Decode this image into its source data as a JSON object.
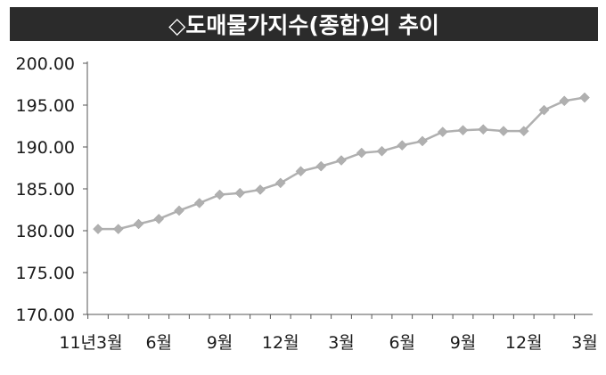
{
  "chart_data": {
    "type": "line",
    "title": "◇도매물가지수(종합)의 추이",
    "xlabel": "",
    "ylabel": "",
    "ylim": [
      170,
      200
    ],
    "y_ticks": [
      "200.00",
      "195.00",
      "190.00",
      "185.00",
      "180.00",
      "175.00",
      "170.00"
    ],
    "x_tick_labels": [
      {
        "index": 0,
        "label": "11년3월"
      },
      {
        "index": 3,
        "label": "6월"
      },
      {
        "index": 6,
        "label": "9월"
      },
      {
        "index": 9,
        "label": "12월"
      },
      {
        "index": 12,
        "label": "3월"
      },
      {
        "index": 15,
        "label": "6월"
      },
      {
        "index": 18,
        "label": "9월"
      },
      {
        "index": 21,
        "label": "12월"
      },
      {
        "index": 24,
        "label": "3월"
      }
    ],
    "series": [
      {
        "values": [
          180.2,
          180.2,
          180.8,
          181.4,
          182.4,
          183.3,
          184.3,
          184.5,
          184.9,
          185.7,
          187.1,
          187.7,
          188.4,
          189.3,
          189.5,
          190.2,
          190.7,
          191.8,
          192.0,
          192.1,
          191.9,
          191.9,
          194.4,
          195.5,
          195.9
        ],
        "color": "#b0b0b0",
        "marker": "diamond"
      }
    ],
    "grid": false
  }
}
